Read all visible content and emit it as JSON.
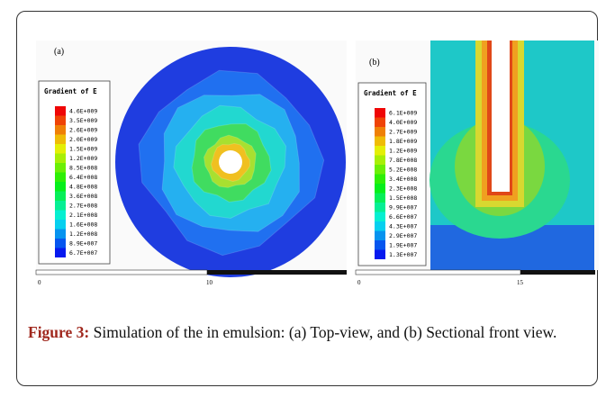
{
  "figure": {
    "panel_a": {
      "label": "(a)",
      "legend_title": "Gradient of E",
      "legend_values": [
        "4.6E+009",
        "3.5E+009",
        "2.6E+009",
        "2.0E+009",
        "1.5E+009",
        "1.2E+009",
        "8.5E+008",
        "6.4E+008",
        "4.8E+008",
        "3.6E+008",
        "2.7E+008",
        "2.1E+008",
        "1.6E+008",
        "1.2E+008",
        "8.9E+007",
        "6.7E+007"
      ],
      "scale_labels": [
        "0",
        "10"
      ]
    },
    "panel_b": {
      "label": "(b)",
      "legend_title": "Gradient of E",
      "legend_values": [
        "6.1E+009",
        "4.0E+009",
        "2.7E+009",
        "1.8E+009",
        "1.2E+009",
        "7.8E+008",
        "5.2E+008",
        "3.4E+008",
        "2.3E+008",
        "1.5E+008",
        "9.9E+007",
        "6.6E+007",
        "4.3E+007",
        "2.9E+007",
        "1.9E+007",
        "1.3E+007"
      ],
      "scale_labels": [
        "0",
        "15"
      ]
    }
  },
  "caption": {
    "label": "Figure 3:",
    "text": "Simulation of the in emulsion: (a) Top-view, and (b) Sectional front view."
  }
}
